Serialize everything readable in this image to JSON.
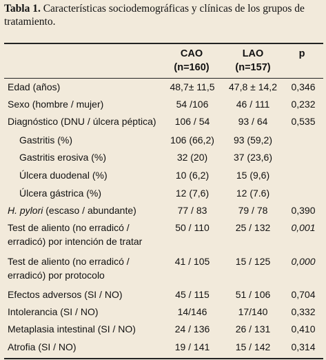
{
  "caption": {
    "label": "Tabla 1.",
    "text": "Características sociodemográficas y clínicas de los grupos de tratamiento."
  },
  "headers": {
    "cao_line1": "CAO",
    "cao_line2": "(n=160)",
    "lao_line1": "LAO",
    "lao_line2": "(n=157)",
    "p": "p"
  },
  "rows": [
    {
      "label": "Edad (años)",
      "cao": "48,7± 11,5",
      "lao": "47,8 ± 14,2",
      "p": "0,346"
    },
    {
      "label": "Sexo (hombre / mujer)",
      "cao": "54 /106",
      "lao": "46 / 111",
      "p": "0,232"
    },
    {
      "label": "Diagnóstico (DNU / úlcera péptica)",
      "cao": "106 / 54",
      "lao": "93 / 64",
      "p": "0,535"
    },
    {
      "label": "Gastritis (%)",
      "cao": "106 (66,2)",
      "lao": "93 (59,2)",
      "p": ""
    },
    {
      "label": "Gastritis erosiva (%)",
      "cao": "32 (20)",
      "lao": "37 (23,6)",
      "p": ""
    },
    {
      "label": "Úlcera duodenal (%)",
      "cao": "10 (6,2)",
      "lao": "15 (9,6)",
      "p": ""
    },
    {
      "label": "Úlcera gástrica (%)",
      "cao": "12 (7,6)",
      "lao": "12 (7.6)",
      "p": ""
    },
    {
      "label_italic": "H. pylori",
      "label_rest": " (escaso / abundante)",
      "cao": "77 / 83",
      "lao": "79 / 78",
      "p": "0,390"
    },
    {
      "label_line1": "Test de aliento (no erradicó /",
      "label_line2": "erradicó) por intención de tratar",
      "cao": "50 / 110",
      "lao": "25 / 132",
      "p": "0,001"
    },
    {
      "label_line1": "Test de aliento (no erradicó /",
      "label_line2": "erradicó) por protocolo",
      "cao": "41 / 105",
      "lao": "15 / 125",
      "p": "0,000"
    },
    {
      "label": "Efectos adversos (SI / NO)",
      "cao": "45 / 115",
      "lao": "51 / 106",
      "p": "0,704"
    },
    {
      "label": "Intolerancia (SI / NO)",
      "cao": "14/146",
      "lao": "17/140",
      "p": "0,332"
    },
    {
      "label": "Metaplasia intestinal (SI / NO)",
      "cao": "24 / 136",
      "lao": "26 / 131",
      "p": "0,410"
    },
    {
      "label": "Atrofia (SI / NO)",
      "cao": "19 / 141",
      "lao": "15 / 142",
      "p": "0,314"
    }
  ]
}
